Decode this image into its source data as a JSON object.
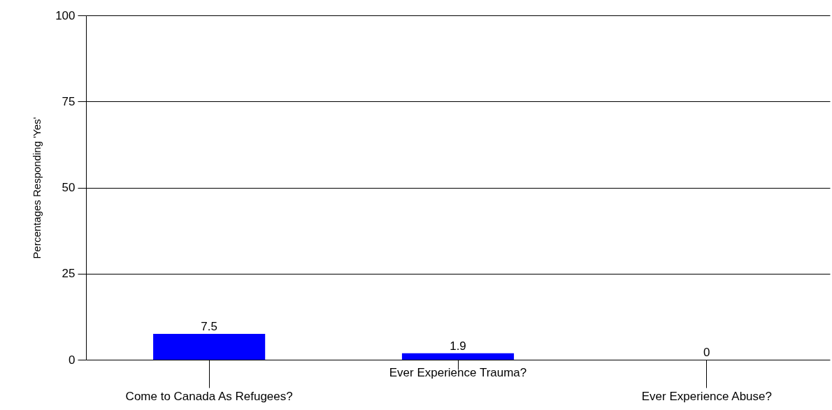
{
  "chart_data": {
    "type": "bar",
    "ylabel": "Percentages Responding 'Yes'",
    "categories": [
      "Come to Canada As Refugees?",
      "Ever Experience Trauma?",
      "Ever Experience Abuse?"
    ],
    "values": [
      7.5,
      1.9,
      0
    ],
    "color": "#0000ff",
    "data_labels": true,
    "ylim": [
      0,
      100
    ],
    "yticks": [
      0,
      25,
      50,
      75,
      100
    ],
    "grid": "y"
  }
}
